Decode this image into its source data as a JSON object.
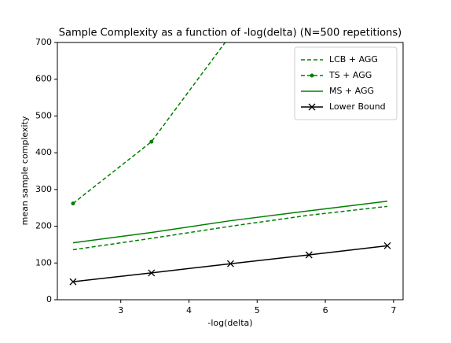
{
  "chart_data": {
    "type": "line",
    "title": "Sample Complexity as a function of -log(delta) (N=500 repetitions)",
    "xlabel": "-log(delta)",
    "ylabel": "mean sample complexity",
    "x": [
      2.3,
      3.45,
      4.61,
      5.76,
      6.91
    ],
    "series": [
      {
        "name": "LCB + AGG",
        "color": "#008000",
        "style": "dashed",
        "marker": "none",
        "values": [
          136,
          167,
          200,
          230,
          254
        ]
      },
      {
        "name": "TS + AGG",
        "color": "#008000",
        "style": "dashed",
        "marker": "dot",
        "values": [
          262,
          430,
          720,
          null,
          null
        ]
      },
      {
        "name": "MS + AGG",
        "color": "#008000",
        "style": "solid",
        "marker": "none",
        "values": [
          155,
          183,
          215,
          242,
          268
        ]
      },
      {
        "name": "Lower Bound",
        "color": "#000000",
        "style": "solid",
        "marker": "x",
        "values": [
          49,
          73,
          98,
          122,
          147
        ]
      }
    ],
    "xlim": [
      2.07,
      7.14
    ],
    "xticks": [
      3,
      4,
      5,
      6,
      7
    ],
    "ylim": [
      0,
      700
    ],
    "yticks": [
      0,
      100,
      200,
      300,
      400,
      500,
      600,
      700
    ],
    "legend": "upper right"
  }
}
